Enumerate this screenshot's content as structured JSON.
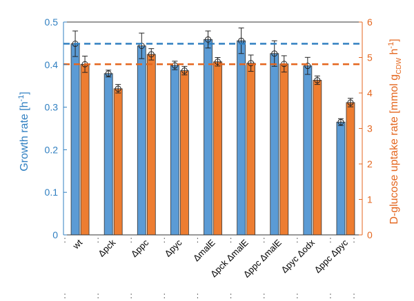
{
  "chart_data": {
    "type": "bar",
    "categories": [
      "wt",
      "Δpck",
      "Δppc",
      "Δpyc",
      "ΔmalE",
      "Δpck ΔmalE",
      "Δppc ΔmalE",
      "Δpyc Δodx",
      "Δppc Δpyc"
    ],
    "series": [
      {
        "axis": "left",
        "color": "#5b9bd5",
        "values": [
          0.449,
          0.379,
          0.444,
          0.398,
          0.459,
          0.456,
          0.426,
          0.397,
          0.265
        ],
        "errors": [
          0.03,
          0.008,
          0.03,
          0.01,
          0.02,
          0.03,
          0.03,
          0.02,
          0.008
        ]
      },
      {
        "axis": "right",
        "color": "#ed7d31",
        "values": [
          4.81,
          4.12,
          5.09,
          4.63,
          4.88,
          4.84,
          4.82,
          4.36,
          3.73
        ],
        "errors": [
          0.23,
          0.12,
          0.16,
          0.12,
          0.12,
          0.23,
          0.23,
          0.12,
          0.12
        ]
      }
    ],
    "reference_lines": [
      {
        "axis": "left",
        "value": 0.449,
        "color": "#2f7fc1",
        "style": "dashed"
      },
      {
        "axis": "right",
        "value": 4.81,
        "color": "#e4661e",
        "style": "dashed"
      }
    ],
    "ylabel_left": "Growth rate [h",
    "ylabel_left_sup": "-1",
    "ylabel_left_end": "]",
    "ylabel_right": "D-glucose uptake rate [mmol g",
    "ylabel_right_sub": "CDW",
    "ylabel_right_mid": " h",
    "ylabel_right_sup": "-1",
    "ylabel_right_end": "]",
    "ylim_left": [
      0,
      0.5
    ],
    "ylim_right": [
      0,
      6
    ],
    "yticks_left": [
      "0",
      "0.1",
      "0.2",
      "0.3",
      "0.4",
      "0.5"
    ],
    "yticks_right": [
      "0",
      "1",
      "2",
      "3",
      "4",
      "5",
      "6"
    ],
    "grid": false,
    "markers": "open circles at bar tops"
  }
}
